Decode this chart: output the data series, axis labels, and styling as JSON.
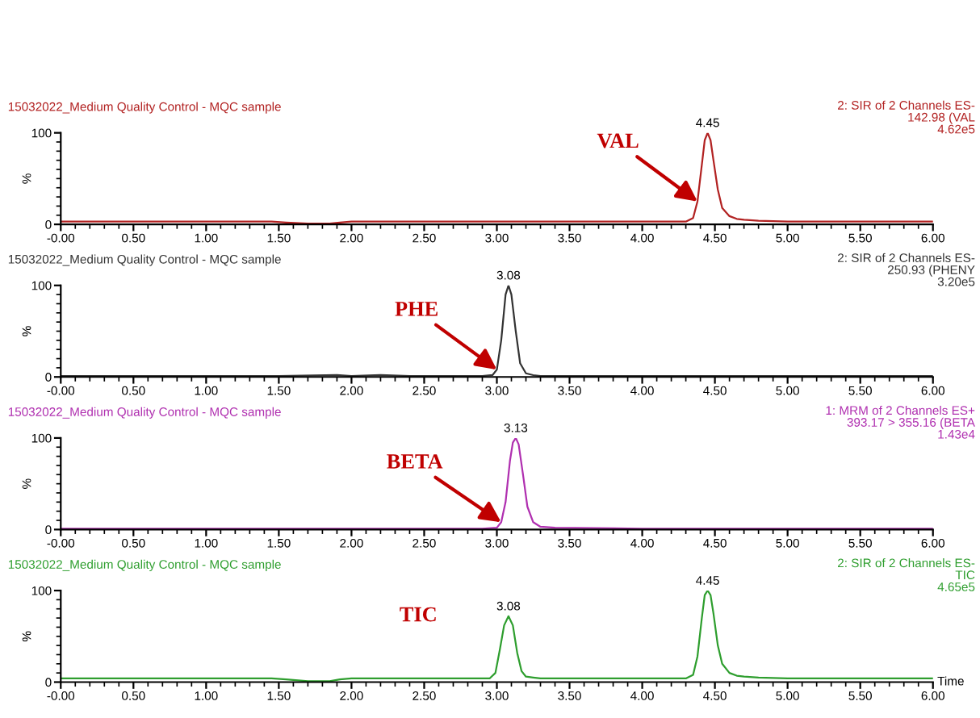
{
  "chart_data": [
    {
      "type": "line",
      "title": "15032022_Medium Quality Control - MQC sample",
      "subtitle": "2: SIR of 2 Channels ES-\n142.98 (VAL\n4.62e5",
      "ylabel": "%",
      "x": [
        0,
        0.5,
        1.0,
        1.45,
        1.55,
        1.7,
        1.85,
        1.92,
        2.0,
        2.5,
        3.0,
        3.5,
        4.0,
        4.3,
        4.35,
        4.38,
        4.41,
        4.43,
        4.45,
        4.47,
        4.49,
        4.52,
        4.55,
        4.6,
        4.65,
        4.7,
        4.8,
        5.0,
        5.5,
        6.0
      ],
      "series": [
        {
          "color": "#b22222",
          "values": [
            3,
            3,
            3,
            3,
            2,
            1,
            1,
            2,
            3,
            3,
            3,
            3,
            3,
            3,
            7,
            25,
            65,
            92,
            100,
            92,
            70,
            38,
            18,
            9,
            6,
            5,
            4,
            3,
            3,
            3
          ]
        }
      ],
      "xlim": [
        0,
        6
      ],
      "ylim": [
        0,
        100
      ],
      "xticks": [
        {
          "value": 0,
          "label": "-0.00"
        },
        {
          "value": 0.5,
          "label": "0.50"
        },
        {
          "value": 1,
          "label": "1.00"
        },
        {
          "value": 1.5,
          "label": "1.50"
        },
        {
          "value": 2,
          "label": "2.00"
        },
        {
          "value": 2.5,
          "label": "2.50"
        },
        {
          "value": 3,
          "label": "3.00"
        },
        {
          "value": 3.5,
          "label": "3.50"
        },
        {
          "value": 4,
          "label": "4.00"
        },
        {
          "value": 4.5,
          "label": "4.50"
        },
        {
          "value": 5,
          "label": "5.00"
        },
        {
          "value": 5.5,
          "label": "5.50"
        },
        {
          "value": 6,
          "label": "6.00"
        }
      ],
      "yticks": [
        0,
        100
      ],
      "annotations": [
        {
          "text": "4.45",
          "x": 4.45,
          "y": 100
        },
        {
          "text": "VAL",
          "x": 4.38,
          "y": 25
        }
      ]
    },
    {
      "type": "line",
      "title": "15032022_Medium Quality Control - MQC sample",
      "subtitle": "2: SIR of 2 Channels ES-\n250.93 (PHENY\n3.20e5",
      "ylabel": "%",
      "x": [
        0,
        0.5,
        1.0,
        1.5,
        1.9,
        2.0,
        2.2,
        2.4,
        2.5,
        2.9,
        2.97,
        3.0,
        3.03,
        3.06,
        3.08,
        3.1,
        3.13,
        3.16,
        3.2,
        3.25,
        3.3,
        3.5,
        4,
        5,
        6
      ],
      "series": [
        {
          "color": "#333333",
          "values": [
            1,
            1,
            1,
            1,
            2,
            1,
            2,
            1,
            1,
            1,
            2,
            8,
            40,
            90,
            100,
            90,
            50,
            15,
            4,
            2,
            1,
            1,
            1,
            1,
            1
          ]
        }
      ],
      "xlim": [
        0,
        6
      ],
      "ylim": [
        0,
        100
      ],
      "xticks": [
        {
          "value": 0,
          "label": "-0.00"
        },
        {
          "value": 0.5,
          "label": "0.50"
        },
        {
          "value": 1,
          "label": "1.00"
        },
        {
          "value": 1.5,
          "label": "1.50"
        },
        {
          "value": 2,
          "label": "2.00"
        },
        {
          "value": 2.5,
          "label": "2.50"
        },
        {
          "value": 3,
          "label": "3.00"
        },
        {
          "value": 3.5,
          "label": "3.50"
        },
        {
          "value": 4,
          "label": "4.00"
        },
        {
          "value": 4.5,
          "label": "4.50"
        },
        {
          "value": 5,
          "label": "5.00"
        },
        {
          "value": 5.5,
          "label": "5.50"
        },
        {
          "value": 6,
          "label": "6.00"
        }
      ],
      "yticks": [
        0,
        100
      ],
      "annotations": [
        {
          "text": "3.08",
          "x": 3.08,
          "y": 100
        },
        {
          "text": "PHE",
          "x": 3.0,
          "y": 8
        }
      ]
    },
    {
      "type": "line",
      "title": "15032022_Medium Quality Control - MQC sample",
      "subtitle": "1: MRM of 2 Channels ES+\n393.17 > 355.16 (BETA\n1.43e4",
      "ylabel": "%",
      "x": [
        0,
        1,
        2,
        2.9,
        3.0,
        3.03,
        3.06,
        3.09,
        3.11,
        3.13,
        3.15,
        3.18,
        3.21,
        3.25,
        3.3,
        3.4,
        4,
        5,
        6
      ],
      "series": [
        {
          "color": "#b030b0",
          "values": [
            1,
            1,
            1,
            1,
            2,
            8,
            30,
            75,
            95,
            100,
            93,
            60,
            25,
            8,
            3,
            2,
            1,
            1,
            1
          ]
        }
      ],
      "xlim": [
        0,
        6
      ],
      "ylim": [
        0,
        100
      ],
      "xticks": [
        {
          "value": 0,
          "label": "-0.00"
        },
        {
          "value": 0.5,
          "label": "0.50"
        },
        {
          "value": 1,
          "label": "1.00"
        },
        {
          "value": 1.5,
          "label": "1.50"
        },
        {
          "value": 2,
          "label": "2.00"
        },
        {
          "value": 2.5,
          "label": "2.50"
        },
        {
          "value": 3,
          "label": "3.00"
        },
        {
          "value": 3.5,
          "label": "3.50"
        },
        {
          "value": 4,
          "label": "4.00"
        },
        {
          "value": 4.5,
          "label": "4.50"
        },
        {
          "value": 5,
          "label": "5.00"
        },
        {
          "value": 5.5,
          "label": "5.50"
        },
        {
          "value": 6,
          "label": "6.00"
        }
      ],
      "yticks": [
        0,
        100
      ],
      "annotations": [
        {
          "text": "3.13",
          "x": 3.13,
          "y": 100
        },
        {
          "text": "BETA",
          "x": 3.03,
          "y": 8
        }
      ]
    },
    {
      "type": "line",
      "title": "15032022_Medium Quality Control - MQC sample",
      "subtitle": "2: SIR of 2 Channels ES-\nTIC\n4.65e5",
      "ylabel": "%",
      "xlabel": "Time",
      "x": [
        0,
        0.5,
        1.0,
        1.45,
        1.55,
        1.7,
        1.85,
        1.92,
        2.0,
        2.5,
        2.95,
        2.99,
        3.02,
        3.05,
        3.08,
        3.11,
        3.14,
        3.17,
        3.2,
        3.25,
        3.3,
        3.5,
        4.0,
        4.3,
        4.35,
        4.38,
        4.41,
        4.43,
        4.45,
        4.47,
        4.49,
        4.52,
        4.55,
        4.6,
        4.65,
        4.7,
        4.8,
        5.0,
        5.5,
        6.0
      ],
      "series": [
        {
          "color": "#2e9e2e",
          "values": [
            4,
            4,
            4,
            4,
            3,
            1,
            1,
            3,
            4,
            4,
            4,
            10,
            35,
            62,
            72,
            62,
            32,
            12,
            6,
            5,
            4,
            4,
            4,
            4,
            8,
            28,
            70,
            95,
            100,
            95,
            75,
            40,
            20,
            10,
            7,
            6,
            5,
            4,
            4,
            4
          ]
        }
      ],
      "xlim": [
        0,
        6
      ],
      "ylim": [
        0,
        100
      ],
      "xticks": [
        {
          "value": 0,
          "label": "-0.00"
        },
        {
          "value": 0.5,
          "label": "0.50"
        },
        {
          "value": 1,
          "label": "1.00"
        },
        {
          "value": 1.5,
          "label": "1.50"
        },
        {
          "value": 2,
          "label": "2.00"
        },
        {
          "value": 2.5,
          "label": "2.50"
        },
        {
          "value": 3,
          "label": "3.00"
        },
        {
          "value": 3.5,
          "label": "3.50"
        },
        {
          "value": 4,
          "label": "4.00"
        },
        {
          "value": 4.5,
          "label": "4.50"
        },
        {
          "value": 5,
          "label": "5.00"
        },
        {
          "value": 5.5,
          "label": "5.50"
        },
        {
          "value": 6,
          "label": "6.00"
        }
      ],
      "yticks": [
        0,
        100
      ],
      "annotations": [
        {
          "text": "3.08",
          "x": 3.08,
          "y": 72
        },
        {
          "text": "4.45",
          "x": 4.45,
          "y": 100
        },
        "TIC"
      ]
    }
  ]
}
